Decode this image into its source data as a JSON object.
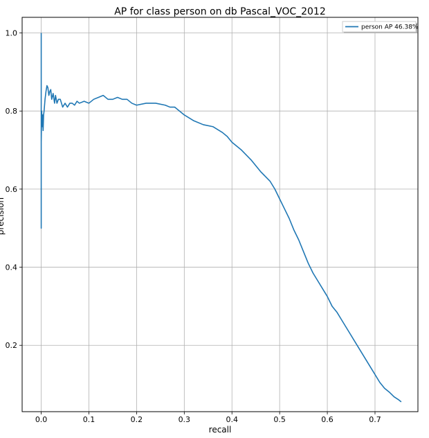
{
  "chart_data": {
    "type": "line",
    "title": "AP for class person on db Pascal_VOC_2012",
    "xlabel": "recall",
    "ylabel": "precision",
    "xlim": [
      -0.04,
      0.79
    ],
    "ylim": [
      0.03,
      1.04
    ],
    "x_ticks": [
      0.0,
      0.1,
      0.2,
      0.3,
      0.4,
      0.5,
      0.6,
      0.7
    ],
    "x_tick_labels": [
      "0.0",
      "0.1",
      "0.2",
      "0.3",
      "0.4",
      "0.5",
      "0.6",
      "0.7"
    ],
    "y_ticks": [
      0.2,
      0.4,
      0.6,
      0.8,
      1.0
    ],
    "y_tick_labels": [
      "0.2",
      "0.4",
      "0.6",
      "0.8",
      "1.0"
    ],
    "grid": true,
    "legend_position": "top-right",
    "series": [
      {
        "name": "person AP 46.38%",
        "color": "#1f77b4",
        "x": [
          0.0,
          0.0,
          0.0,
          0.0,
          0.001,
          0.002,
          0.003,
          0.004,
          0.005,
          0.006,
          0.008,
          0.01,
          0.012,
          0.014,
          0.016,
          0.018,
          0.02,
          0.022,
          0.025,
          0.028,
          0.03,
          0.033,
          0.036,
          0.04,
          0.045,
          0.05,
          0.055,
          0.06,
          0.065,
          0.07,
          0.075,
          0.08,
          0.09,
          0.1,
          0.11,
          0.12,
          0.13,
          0.14,
          0.15,
          0.16,
          0.17,
          0.18,
          0.19,
          0.2,
          0.22,
          0.24,
          0.26,
          0.27,
          0.28,
          0.29,
          0.3,
          0.32,
          0.34,
          0.36,
          0.38,
          0.39,
          0.4,
          0.42,
          0.44,
          0.46,
          0.48,
          0.49,
          0.5,
          0.51,
          0.52,
          0.53,
          0.54,
          0.55,
          0.56,
          0.57,
          0.58,
          0.59,
          0.6,
          0.61,
          0.62,
          0.63,
          0.64,
          0.65,
          0.66,
          0.67,
          0.68,
          0.69,
          0.7,
          0.71,
          0.72,
          0.73,
          0.74,
          0.75,
          0.755
        ],
        "y": [
          1.0,
          0.5,
          0.75,
          0.72,
          0.8,
          0.76,
          0.79,
          0.75,
          0.79,
          0.8,
          0.83,
          0.85,
          0.865,
          0.86,
          0.84,
          0.85,
          0.855,
          0.83,
          0.845,
          0.82,
          0.84,
          0.82,
          0.83,
          0.83,
          0.81,
          0.82,
          0.81,
          0.82,
          0.82,
          0.815,
          0.825,
          0.82,
          0.825,
          0.82,
          0.83,
          0.835,
          0.84,
          0.83,
          0.83,
          0.835,
          0.83,
          0.83,
          0.82,
          0.815,
          0.82,
          0.82,
          0.815,
          0.81,
          0.81,
          0.8,
          0.79,
          0.775,
          0.765,
          0.76,
          0.745,
          0.735,
          0.72,
          0.7,
          0.675,
          0.645,
          0.62,
          0.6,
          0.575,
          0.55,
          0.525,
          0.495,
          0.47,
          0.44,
          0.41,
          0.385,
          0.365,
          0.345,
          0.325,
          0.3,
          0.285,
          0.265,
          0.245,
          0.225,
          0.205,
          0.185,
          0.165,
          0.145,
          0.125,
          0.105,
          0.09,
          0.08,
          0.068,
          0.06,
          0.055
        ]
      }
    ]
  }
}
